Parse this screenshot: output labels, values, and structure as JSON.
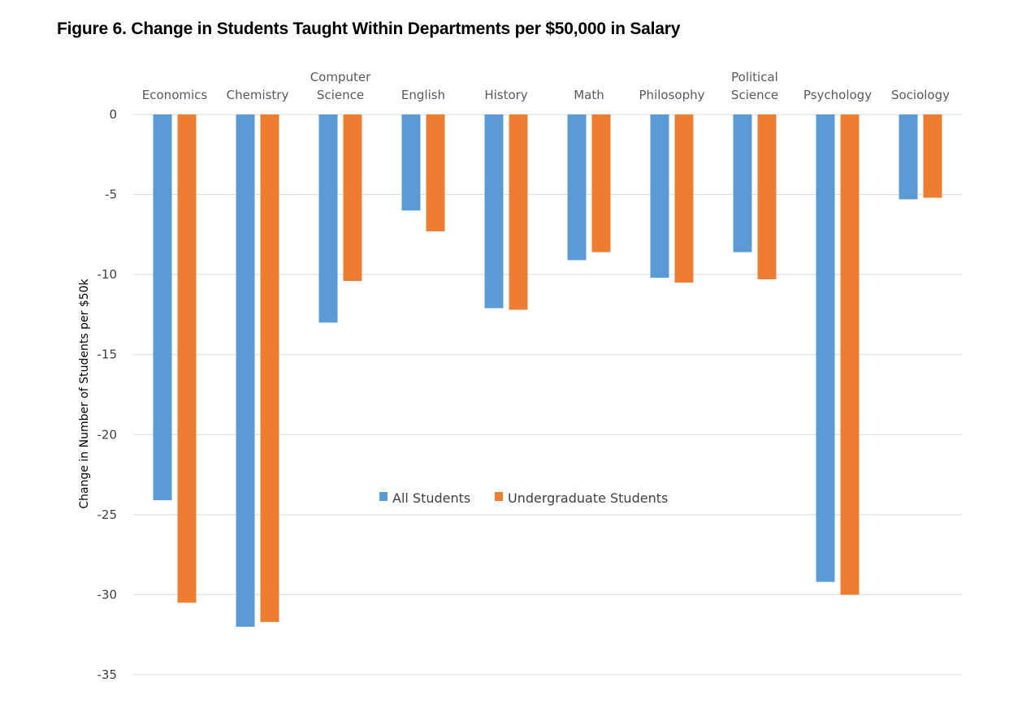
{
  "figure_title": "Figure 6.  Change in Students Taught Within Departments per $50,000 in Salary",
  "chart_data": {
    "type": "bar",
    "title": "Figure 6.  Change in Students Taught Within Departments per $50,000 in Salary",
    "xlabel": "",
    "ylabel": "Change in Number of Students per $50k",
    "ylim": [
      -35,
      0
    ],
    "yticks": [
      0,
      -5,
      -10,
      -15,
      -20,
      -25,
      -30,
      -35
    ],
    "grid": true,
    "legend_position": "center",
    "x_axis_position": "top",
    "categories": [
      [
        "Economics"
      ],
      [
        "Chemistry"
      ],
      [
        "Computer",
        "Science"
      ],
      [
        "English"
      ],
      [
        "History"
      ],
      [
        "Math"
      ],
      [
        "Philosophy"
      ],
      [
        "Political",
        "Science"
      ],
      [
        "Psychology"
      ],
      [
        "Sociology"
      ]
    ],
    "series": [
      {
        "name": "All Students",
        "color": "#5b9bd5",
        "values": [
          -24.1,
          -32.0,
          -13.0,
          -6.0,
          -12.1,
          -9.1,
          -10.2,
          -8.6,
          -29.2,
          -5.3
        ]
      },
      {
        "name": "Undergraduate Students",
        "color": "#ed7d31",
        "values": [
          -30.5,
          -31.7,
          -10.4,
          -7.3,
          -12.2,
          -8.6,
          -10.5,
          -10.3,
          -30.0,
          -5.2
        ]
      }
    ]
  }
}
